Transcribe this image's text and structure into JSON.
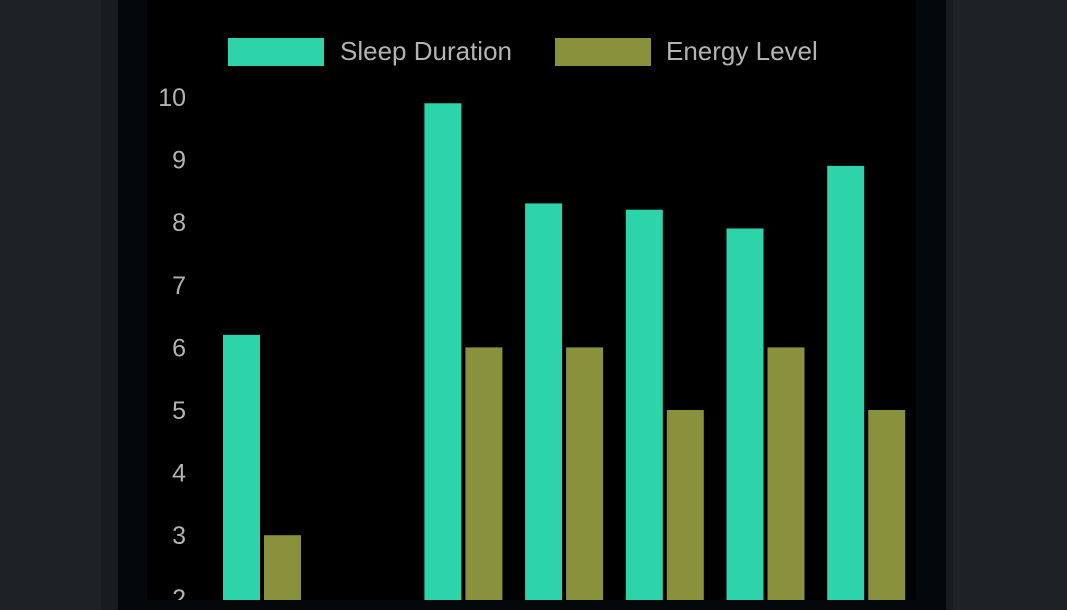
{
  "colors": {
    "sleep": "#2dd4aa",
    "energy": "#8a913d",
    "text": "#b3b3b3",
    "plot_bg": "#000000"
  },
  "chart_data": {
    "type": "bar",
    "categories": [
      "",
      "",
      "",
      "",
      "",
      "",
      ""
    ],
    "series": [
      {
        "name": "Sleep Duration",
        "values": [
          6.2,
          null,
          9.9,
          8.3,
          8.2,
          7.9,
          8.9
        ]
      },
      {
        "name": "Energy Level",
        "values": [
          3,
          null,
          6,
          6,
          5,
          6,
          5
        ]
      }
    ],
    "ylim": [
      2,
      10
    ],
    "yticks": [
      2,
      3,
      4,
      5,
      6,
      7,
      8,
      9,
      10
    ],
    "legend": "top-center",
    "grid": false
  }
}
